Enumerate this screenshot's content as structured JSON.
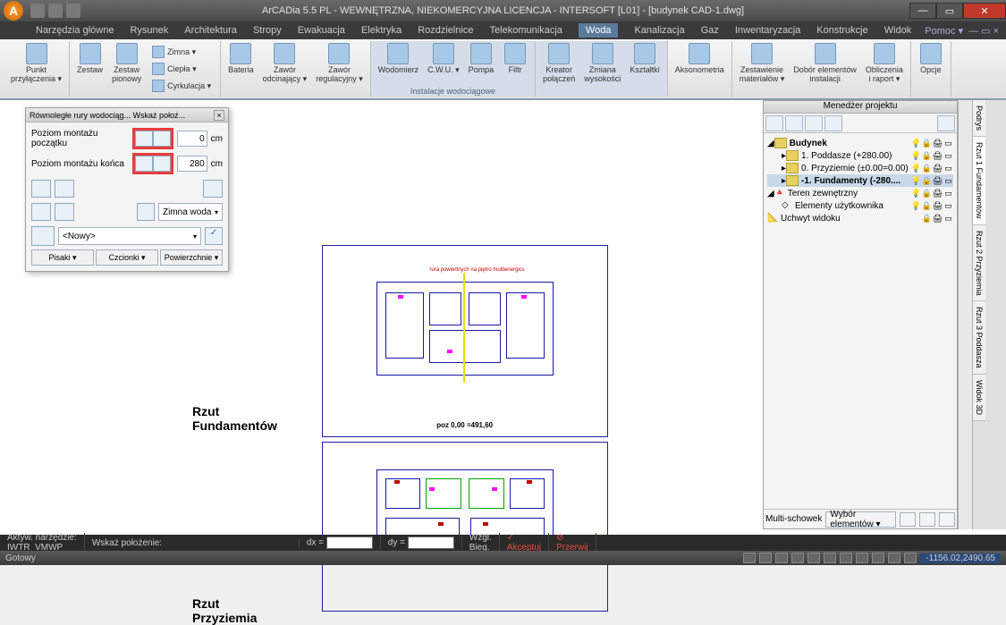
{
  "app": {
    "title": "ArCADia 5.5 PL - WEWNĘTRZNA, NIEKOMERCYJNA LICENCJA - INTERSOFT [L01] - [budynek CAD-1.dwg]",
    "icon_letter": "A"
  },
  "ribbon_tabs": [
    "Narzędzia główne",
    "Rysunek",
    "Architektura",
    "Stropy",
    "Ewakuacja",
    "Elektryka",
    "Rozdzielnice",
    "Telekomunikacja",
    "Woda",
    "Kanalizacja",
    "Gaz",
    "Inwentaryzacja",
    "Konstrukcje",
    "Widok"
  ],
  "ribbon_active": "Woda",
  "help_label": "Pomoc ▾",
  "ribbon": {
    "punkt": "Punkt\nprzyłączenia ▾",
    "zestaw": "Zestaw",
    "zestaw_pionowy": "Zestaw\npionowy",
    "zimna": "Zimna ▾",
    "ciepla": "Ciepła ▾",
    "cyrkulacja": "Cyrkulacja ▾",
    "bateria": "Bateria",
    "zawor_odc": "Zawór\nodcinający ▾",
    "zawor_reg": "Zawór\nregulacyjny ▾",
    "wodomierz": "Wodomierz",
    "cwu": "C.W.U. ▾",
    "pompa": "Pompa",
    "filtr": "Filtr",
    "kreator": "Kreator\npołączeń",
    "zmiana": "Zmiana\nwysokości",
    "ksztaltki": "Kształtki",
    "aksonometria": "Aksonometria",
    "zestawienie": "Zestawienie\nmateriałów ▾",
    "dobor": "Dobór elementów\ninstalacji",
    "obliczenia": "Obliczenia\ni raport ▾",
    "opcje": "Opcje",
    "group_label": "Instalacje wodociągowe"
  },
  "panel": {
    "title": "Równoległe rury wodociąg... Wskaż położ...",
    "row1_label": "Poziom montażu początku",
    "row1_val": "0",
    "row2_label": "Poziom montażu końca",
    "row2_val": "280",
    "unit": "cm",
    "combo": "Zimna woda",
    "nowy": "<Nowy>",
    "pisaki": "Pisaki ▾",
    "czcionki": "Czcionki ▾",
    "powierzchnie": "Powierzchnie ▾"
  },
  "proj": {
    "title": "Menedżer projektu",
    "budynek": "Budynek",
    "poddasze": "1. Poddasze (+280.00)",
    "przyziemie": "0. Przyziemie (±0.00=0.00)",
    "fundamenty": "-1. Fundamenty (-280....",
    "teren": "Teren zewnętrzny",
    "elementy": "Elementy użytkownika",
    "uchwyt": "Uchwyt widoku",
    "multi": "Multi-schowek",
    "wybor": "Wybór elementów ▾"
  },
  "side_tabs": [
    "Podrys",
    "Rzut 1 Fundamentów",
    "Rzut 2 Przyziemia",
    "Rzut 3 Poddasza",
    "Widok 3D"
  ],
  "labels": {
    "rzut1a": "Rzut",
    "rzut1b": "Fundamentów",
    "rzut2a": "Rzut",
    "rzut2b": "Przyziemia",
    "poz": "poz 0,00 =491,60"
  },
  "cmd": {
    "aktyw": "Aktyw. narzędzie:",
    "tool": "IWTR_VMWP",
    "wskaz": "Wskaż położenie:",
    "dx": "dx =",
    "dy": "dy =",
    "wzgl": "Wzgl.",
    "bieg": "Bieg.",
    "akceptuj": "Akceptuj",
    "przerwij": "Przerwij"
  },
  "status": {
    "ready": "Gotowy",
    "coord": "-1156.02,2490.65"
  }
}
